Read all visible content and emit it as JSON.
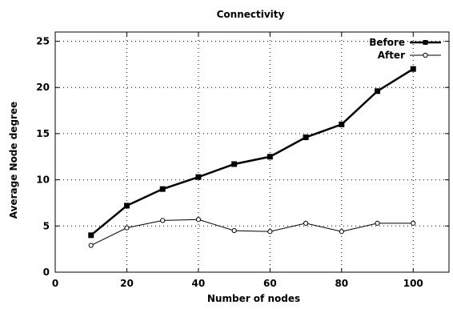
{
  "chart_data": {
    "type": "line",
    "title": "Connectivity",
    "xlabel": "Number of nodes",
    "ylabel": "Average Node degree",
    "xlim": [
      0,
      110
    ],
    "ylim": [
      0,
      26
    ],
    "xticks": [
      0,
      20,
      40,
      60,
      80,
      100
    ],
    "yticks": [
      0,
      5,
      10,
      15,
      20,
      25
    ],
    "grid": true,
    "legend_position": "top-right",
    "x": [
      10,
      20,
      30,
      40,
      50,
      60,
      70,
      80,
      90,
      100
    ],
    "series": [
      {
        "name": "Before",
        "values": [
          4.0,
          7.2,
          9.0,
          10.3,
          11.7,
          12.5,
          14.6,
          16.0,
          19.6,
          22.0
        ],
        "marker": "filled-square",
        "color": "#000000"
      },
      {
        "name": "After",
        "values": [
          2.9,
          4.8,
          5.6,
          5.7,
          4.5,
          4.4,
          5.3,
          4.4,
          5.3,
          5.3
        ],
        "marker": "open-circle",
        "color": "#000000"
      }
    ]
  }
}
